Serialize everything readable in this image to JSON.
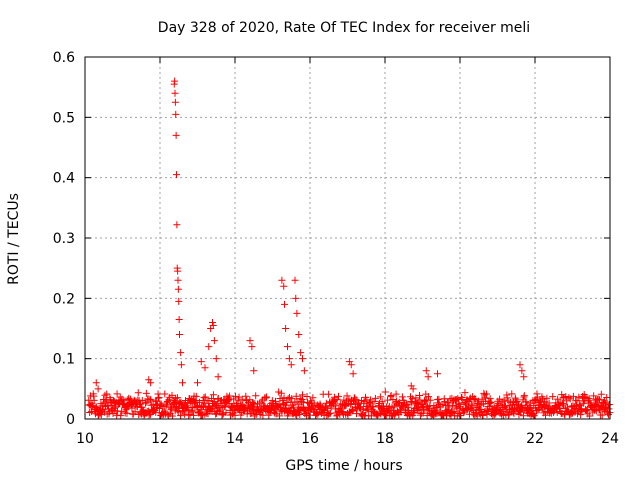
{
  "chart_data": {
    "type": "scatter",
    "title": "Day 328 of 2020, Rate Of TEC Index for receiver meli",
    "xlabel": "GPS time / hours",
    "ylabel": "ROTI / TECUs",
    "xlim": [
      10,
      24
    ],
    "ylim": [
      0,
      0.6
    ],
    "xticks": [
      "10",
      "12",
      "14",
      "16",
      "18",
      "20",
      "22",
      "24"
    ],
    "yticks": [
      "0",
      "0.1",
      "0.2",
      "0.3",
      "0.4",
      "0.5",
      "0.6"
    ],
    "grid": true,
    "marker": "+",
    "color": "#ff0000",
    "series": [
      {
        "name": "ROTI",
        "x": [
          12.38,
          12.39,
          12.4,
          12.41,
          12.42,
          12.43,
          12.44,
          12.45,
          12.46,
          12.47,
          12.48,
          12.49,
          12.5,
          12.51,
          12.52,
          12.55,
          12.57,
          12.6,
          13.1,
          13.2,
          13.3,
          13.35,
          13.4,
          13.42,
          13.45,
          13.5,
          13.55,
          14.4,
          14.45,
          14.5,
          15.25,
          15.3,
          15.32,
          15.35,
          15.4,
          15.45,
          15.5,
          15.6,
          15.62,
          15.65,
          15.7,
          15.75,
          15.8,
          15.85,
          17.05,
          17.1,
          17.15,
          18.7,
          18.75,
          19.1,
          19.15,
          19.4,
          21.6,
          21.65,
          21.7,
          10.3,
          10.35,
          11.7,
          11.75,
          13.0
        ],
        "y": [
          0.555,
          0.56,
          0.54,
          0.525,
          0.505,
          0.47,
          0.405,
          0.322,
          0.25,
          0.245,
          0.23,
          0.215,
          0.195,
          0.165,
          0.14,
          0.11,
          0.09,
          0.06,
          0.095,
          0.085,
          0.12,
          0.15,
          0.16,
          0.155,
          0.13,
          0.1,
          0.07,
          0.13,
          0.12,
          0.08,
          0.23,
          0.22,
          0.19,
          0.15,
          0.12,
          0.1,
          0.09,
          0.23,
          0.2,
          0.175,
          0.14,
          0.11,
          0.1,
          0.08,
          0.095,
          0.09,
          0.075,
          0.055,
          0.05,
          0.08,
          0.07,
          0.075,
          0.09,
          0.08,
          0.07,
          0.06,
          0.05,
          0.065,
          0.06,
          0.06
        ]
      }
    ],
    "baseline": {
      "x_start": 10.1,
      "x_end": 24.0,
      "y_min": 0.005,
      "y_max": 0.045
    }
  }
}
